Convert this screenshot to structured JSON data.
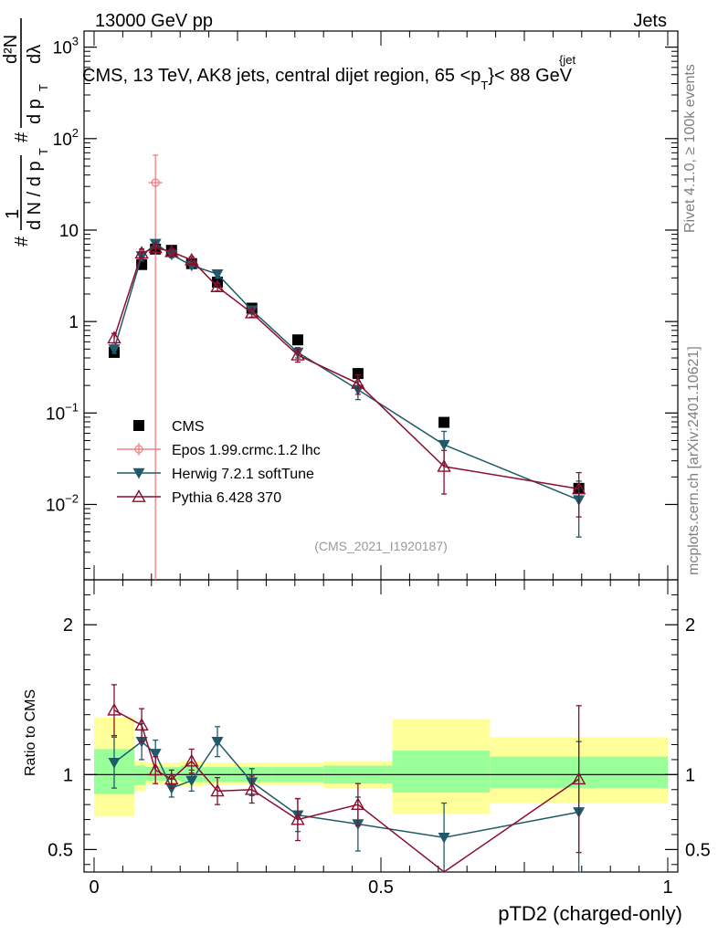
{
  "header": {
    "beam": "13000 GeV pp",
    "category": "Jets",
    "title_main": "CMS, 13 TeV, AK8 jets, central dijet region, 65 <p",
    "title_sub": "T",
    "title_sup": "{jet",
    "title_tail": "}< 88 GeV"
  },
  "side_labels": {
    "rivet": "Rivet 4.1.0, ≥ 100k events",
    "mcplots": "mcplots.cern.ch [arXiv:2401.10621]"
  },
  "analysis_id": "(CMS_2021_I1920187)",
  "y_axis_main": {
    "label_hash1": "#",
    "label_one": "1",
    "label_dn": "d N / d p",
    "label_t": "T",
    "label_hash2": "#",
    "label_d2n": "d²N",
    "label_dpt": "d p",
    "label_dlambda": "dλ",
    "ticks": [
      {
        "v": 0.01,
        "base": "10",
        "exp": "−2"
      },
      {
        "v": 0.1,
        "base": "10",
        "exp": "−1"
      },
      {
        "v": 1,
        "base": "1",
        "exp": ""
      },
      {
        "v": 10,
        "base": "10",
        "exp": ""
      },
      {
        "v": 100,
        "base": "10",
        "exp": "2"
      },
      {
        "v": 1000,
        "base": "10",
        "exp": "3"
      }
    ]
  },
  "ratio_axis": {
    "label": "Ratio to CMS",
    "ticks": [
      {
        "v": 0.5,
        "label": "0.5"
      },
      {
        "v": 1,
        "label": "1"
      },
      {
        "v": 2,
        "label": "2"
      }
    ]
  },
  "x_axis": {
    "label": "pTD2 (charged-only)",
    "ticks": [
      {
        "v": 0,
        "label": "0"
      },
      {
        "v": 0.5,
        "label": "0.5"
      },
      {
        "v": 1,
        "label": "1"
      }
    ]
  },
  "colors": {
    "cms": "#000000",
    "epos": "#f08080",
    "herwig": "#1f5a6b",
    "pythia": "#8b0e2e",
    "band_inner": "#99ff99",
    "band_outer": "#ffff99"
  },
  "chart_data": [
    {
      "type": "scatter",
      "title": "CMS, 13 TeV, AK8 jets, central dijet region, 65 < pT jet < 88 GeV",
      "xlabel": "pTD2 (charged-only)",
      "ylabel": "1/(dN/dpT) d²N/(dpT dλ)",
      "xlim": [
        0,
        1
      ],
      "ylim": [
        0.0015,
        1500
      ],
      "yscale": "log",
      "legend_position": "left-middle",
      "series": [
        {
          "name": "CMS",
          "marker": "square",
          "x": [
            0.035,
            0.083,
            0.107,
            0.135,
            0.17,
            0.215,
            0.275,
            0.355,
            0.46,
            0.61,
            0.845
          ],
          "values": [
            0.46,
            4.2,
            6.2,
            6.0,
            4.3,
            2.7,
            1.4,
            0.63,
            0.27,
            0.079,
            0.015
          ]
        },
        {
          "name": "Epos 1.99.crmc.1.2 lhc",
          "marker": "open-circle",
          "x": [
            0.107
          ],
          "values": [
            33
          ],
          "yerr_low": [
            32.9
          ],
          "yerr_high": [
            33
          ],
          "xerr": [
            0.012
          ]
        },
        {
          "name": "Herwig 7.2.1 softTune",
          "marker": "filled-triangle-down",
          "x": [
            0.035,
            0.083,
            0.107,
            0.135,
            0.17,
            0.215,
            0.275,
            0.355,
            0.46,
            0.61,
            0.845
          ],
          "values": [
            0.5,
            5.2,
            7.1,
            5.4,
            4.1,
            3.3,
            1.33,
            0.46,
            0.18,
            0.045,
            0.0112
          ],
          "yerr": [
            0.05,
            0.6,
            0.7,
            0.4,
            0.3,
            0.3,
            0.12,
            0.06,
            0.04,
            0.018,
            0.0068
          ]
        },
        {
          "name": "Pythia 6.428 370",
          "marker": "open-triangle-up",
          "x": [
            0.035,
            0.083,
            0.107,
            0.135,
            0.17,
            0.215,
            0.275,
            0.355,
            0.46,
            0.61,
            0.845
          ],
          "values": [
            0.66,
            5.6,
            6.4,
            5.8,
            4.7,
            2.4,
            1.24,
            0.43,
            0.21,
            0.026,
            0.0148
          ],
          "yerr": [
            0.08,
            0.6,
            0.6,
            0.4,
            0.4,
            0.25,
            0.12,
            0.07,
            0.05,
            0.013,
            0.0075
          ]
        }
      ]
    },
    {
      "type": "line",
      "title": "Ratio to CMS",
      "xlabel": "pTD2 (charged-only)",
      "ylabel": "Ratio to CMS",
      "xlim": [
        0,
        1
      ],
      "ylim": [
        0.35,
        2.3
      ],
      "band_edges": [
        0,
        0.07,
        0.09,
        0.12,
        0.15,
        0.19,
        0.24,
        0.31,
        0.4,
        0.52,
        0.69,
        1.0
      ],
      "band_inner_low": [
        0.87,
        0.93,
        0.96,
        0.96,
        0.95,
        0.95,
        0.95,
        0.95,
        0.94,
        0.88,
        0.91
      ],
      "band_inner_high": [
        1.17,
        1.06,
        1.05,
        1.05,
        1.06,
        1.05,
        1.05,
        1.05,
        1.06,
        1.16,
        1.12
      ],
      "band_outer_low": [
        0.72,
        0.89,
        0.93,
        0.93,
        0.92,
        0.93,
        0.93,
        0.93,
        0.91,
        0.74,
        0.81
      ],
      "band_outer_high": [
        1.38,
        1.09,
        1.08,
        1.08,
        1.09,
        1.08,
        1.08,
        1.08,
        1.09,
        1.37,
        1.25
      ],
      "series": [
        {
          "name": "Herwig 7.2.1 softTune",
          "x": [
            0.035,
            0.083,
            0.107,
            0.135,
            0.17,
            0.215,
            0.275,
            0.355,
            0.46,
            0.61,
            0.845
          ],
          "values": [
            1.08,
            1.22,
            1.14,
            0.91,
            0.96,
            1.22,
            0.95,
            0.73,
            0.67,
            0.58,
            0.75
          ],
          "yerr": [
            0.17,
            0.12,
            0.09,
            0.06,
            0.07,
            0.1,
            0.09,
            0.11,
            0.18,
            0.23,
            0.47
          ]
        },
        {
          "name": "Pythia 6.428 370",
          "x": [
            0.035,
            0.083,
            0.107,
            0.135,
            0.17,
            0.215,
            0.275,
            0.355,
            0.46,
            0.61,
            0.845
          ],
          "values": [
            1.43,
            1.33,
            1.03,
            0.97,
            1.09,
            0.89,
            0.9,
            0.7,
            0.8,
            0.33,
            0.97
          ],
          "yerr": [
            0.17,
            0.11,
            0.09,
            0.06,
            0.08,
            0.09,
            0.09,
            0.14,
            0.14,
            0.17,
            0.49
          ]
        }
      ]
    }
  ]
}
